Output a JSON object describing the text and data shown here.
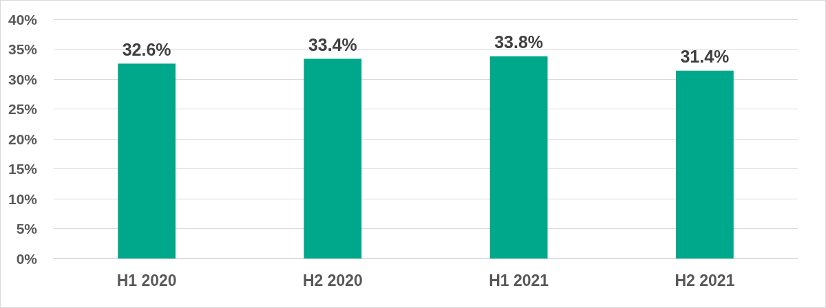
{
  "chart_data": {
    "type": "bar",
    "categories": [
      "H1 2020",
      "H2 2020",
      "H1 2021",
      "H2 2021"
    ],
    "values": [
      32.6,
      33.4,
      33.8,
      31.4
    ],
    "value_labels": [
      "32.6%",
      "33.4%",
      "33.8%",
      "31.4%"
    ],
    "color": "#00a88b",
    "ylim": [
      0,
      40
    ],
    "yticks": [
      {
        "value": 0,
        "label": "0%"
      },
      {
        "value": 5,
        "label": "5%"
      },
      {
        "value": 10,
        "label": "10%"
      },
      {
        "value": 15,
        "label": "15%"
      },
      {
        "value": 20,
        "label": "20%"
      },
      {
        "value": 25,
        "label": "25%"
      },
      {
        "value": 30,
        "label": "30%"
      },
      {
        "value": 35,
        "label": "35%"
      },
      {
        "value": 40,
        "label": "40%"
      }
    ],
    "grid": "y"
  }
}
